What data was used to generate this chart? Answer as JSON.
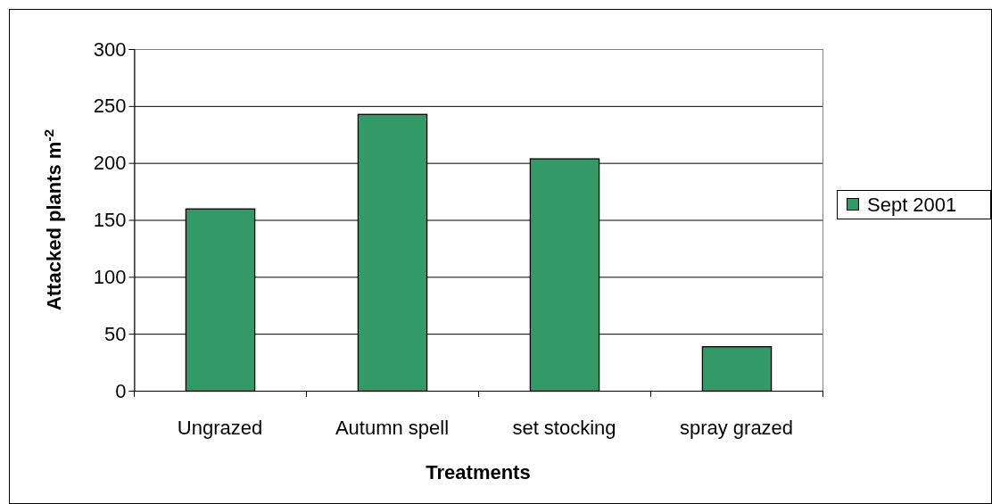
{
  "chart_data": {
    "type": "bar",
    "xlabel": "Treatments",
    "ylabel": "Attacked plants m$^{-2}$",
    "categories": [
      "Ungrazed",
      "Autumn spell",
      "set stocking",
      "spray grazed"
    ],
    "series": [
      {
        "name": "Sept 2001",
        "color": "#339966",
        "values": [
          160,
          243,
          204,
          39
        ]
      }
    ],
    "ylim": [
      0,
      300
    ],
    "yticks": [
      0,
      50,
      100,
      150,
      200,
      250,
      300
    ],
    "grid": "y",
    "legend": "right"
  }
}
